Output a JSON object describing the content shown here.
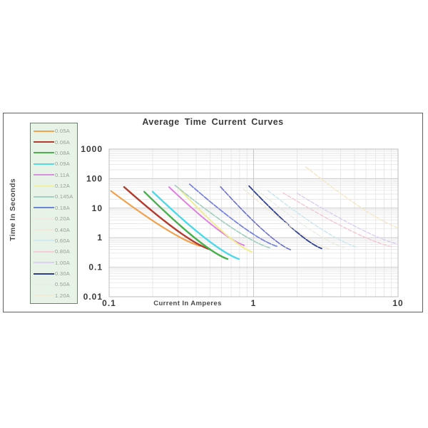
{
  "chart_data": {
    "type": "line",
    "title": "Average Time Current Curves",
    "xlabel": "Current In Amperes",
    "ylabel": "Time In Seconds",
    "x_scale": "log",
    "y_scale": "log",
    "xlim": [
      0.1,
      10
    ],
    "ylim": [
      0.01,
      1000
    ],
    "x_tick_labels": [
      "0.1",
      "1",
      "10"
    ],
    "y_tick_labels": [
      "1000",
      "100",
      "10",
      "1",
      "0.1",
      "0.01"
    ],
    "grid": "log major + minor, light gray",
    "legend_position": "left",
    "series": [
      {
        "name": "0.05A",
        "color": "#f0a24e",
        "width": 2.2,
        "dash": "",
        "start": [
          0.103,
          38
        ],
        "end": [
          0.43,
          0.52
        ]
      },
      {
        "name": "0.06A",
        "color": "#b23c2e",
        "width": 2.4,
        "dash": "",
        "start": [
          0.127,
          52
        ],
        "end": [
          0.5,
          0.4
        ]
      },
      {
        "name": "0.08A",
        "color": "#45b04c",
        "width": 2.4,
        "dash": "",
        "start": [
          0.175,
          36
        ],
        "end": [
          0.66,
          0.19
        ]
      },
      {
        "name": "0.09A",
        "color": "#4fd9e8",
        "width": 2.4,
        "dash": "",
        "start": [
          0.2,
          36
        ],
        "end": [
          0.79,
          0.19
        ]
      },
      {
        "name": "0.11A",
        "color": "#e07ee0",
        "width": 2.0,
        "dash": "",
        "start": [
          0.26,
          52
        ],
        "end": [
          0.86,
          0.55
        ]
      },
      {
        "name": "0.12A",
        "color": "#eeee8e",
        "width": 2.0,
        "dash": "",
        "start": [
          0.3,
          50
        ],
        "end": [
          0.97,
          0.33
        ]
      },
      {
        "name": "0.145A",
        "color": "#9fcfc0",
        "width": 1.6,
        "dash": "7 2",
        "start": [
          0.285,
          60
        ],
        "end": [
          1.3,
          0.45
        ]
      },
      {
        "name": "0.18A",
        "color": "#7381dd",
        "width": 1.7,
        "dash": "7 2",
        "start": [
          0.36,
          65
        ],
        "end": [
          1.45,
          0.51
        ]
      },
      {
        "name": "0.20A",
        "color": "#6a6fc8",
        "width": 1.6,
        "dash": "7 2",
        "start": [
          0.59,
          53
        ],
        "end": [
          1.8,
          0.39
        ]
      },
      {
        "name": "0.30A",
        "color": "#2e3f8f",
        "width": 1.8,
        "dash": "8 2",
        "start": [
          0.93,
          56
        ],
        "end": [
          2.96,
          0.43
        ]
      },
      {
        "name": "0.40A",
        "color": "#f0e6cf",
        "width": 1.2,
        "dash": "5 2.5",
        "start": [
          0.85,
          45
        ],
        "end": [
          3.4,
          0.4
        ]
      },
      {
        "name": "0.50A",
        "color": "#e2eedd",
        "width": 1.2,
        "dash": "5 2.5",
        "start": [
          1.05,
          42
        ],
        "end": [
          4.3,
          0.45
        ]
      },
      {
        "name": "0.60A",
        "color": "#c8e6f0",
        "width": 1.4,
        "dash": "5 2.5",
        "start": [
          1.25,
          40
        ],
        "end": [
          5.2,
          0.48
        ]
      },
      {
        "name": "0.80A",
        "color": "#f4c6d2",
        "width": 1.4,
        "dash": "5 2.5",
        "start": [
          1.6,
          33
        ],
        "end": [
          9.0,
          0.5
        ]
      },
      {
        "name": "1.00A",
        "color": "#dccdf0",
        "width": 1.4,
        "dash": "5 2.5",
        "start": [
          2.0,
          32
        ],
        "end": [
          10.3,
          0.58
        ]
      },
      {
        "name": "1.20A",
        "color": "#f4e6c8",
        "width": 1.4,
        "dash": "5 2.5",
        "start": [
          2.3,
          250
        ],
        "end": [
          10.5,
          2.0
        ]
      }
    ]
  },
  "legend": {
    "items": [
      {
        "label": "0.05A",
        "color": "#f2a44e"
      },
      {
        "label": "0.06A",
        "color": "#b23c2e"
      },
      {
        "label": "0.08A",
        "color": "#4cb04c"
      },
      {
        "label": "0.09A",
        "color": "#55d8e8"
      },
      {
        "label": "0.11A",
        "color": "#d98ede"
      },
      {
        "label": "0.12A",
        "color": "#f0f0a0"
      },
      {
        "label": "0.145A",
        "color": "#a5cfc2"
      },
      {
        "label": "0.18A",
        "color": "#6b83d8"
      },
      {
        "label": "0.20A",
        "color": "#efe9e2"
      },
      {
        "label": "0.40A",
        "color": "#efe9dc"
      },
      {
        "label": "0.60A",
        "color": "#cfe9f2"
      },
      {
        "label": "0.80A",
        "color": "#f6ccd6"
      },
      {
        "label": "1.00A",
        "color": "#ded0f2"
      },
      {
        "label": "0.30A",
        "color": "#2e3f8f"
      },
      {
        "label": "0.50A",
        "color": "#e6efe3"
      },
      {
        "label": "1.20A",
        "color": "#f2ecd4"
      }
    ]
  }
}
